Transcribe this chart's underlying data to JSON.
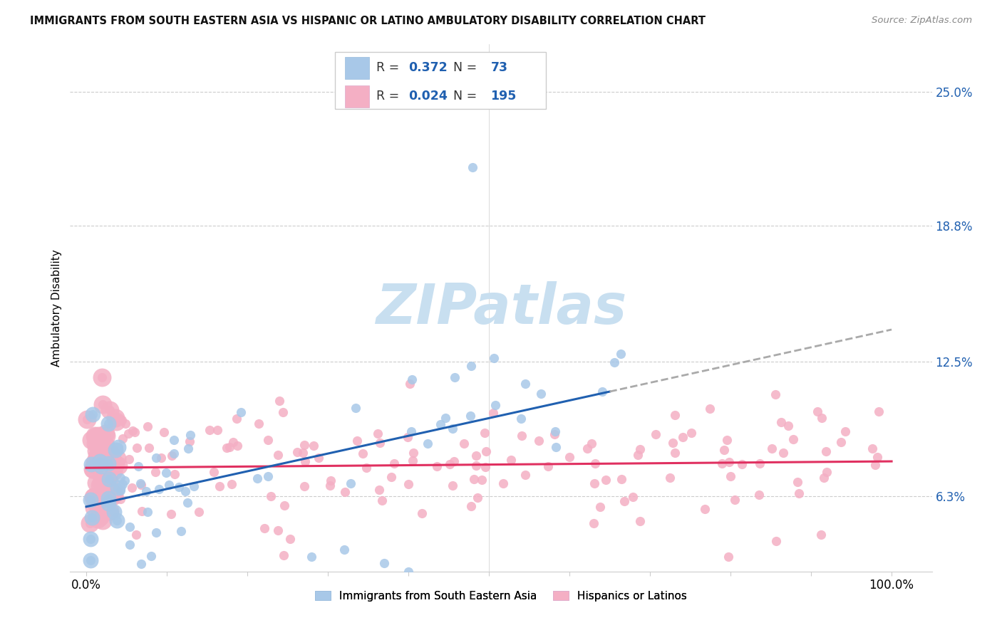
{
  "title": "IMMIGRANTS FROM SOUTH EASTERN ASIA VS HISPANIC OR LATINO AMBULATORY DISABILITY CORRELATION CHART",
  "source": "Source: ZipAtlas.com",
  "ylabel": "Ambulatory Disability",
  "ytick_labels": [
    "6.3%",
    "12.5%",
    "18.8%",
    "25.0%"
  ],
  "ytick_values": [
    0.063,
    0.125,
    0.188,
    0.25
  ],
  "xtick_values": [
    0.0,
    0.1,
    0.2,
    0.3,
    0.4,
    0.5,
    0.6,
    0.7,
    0.8,
    0.9,
    1.0
  ],
  "xlim": [
    -0.02,
    1.05
  ],
  "ylim": [
    0.028,
    0.272
  ],
  "blue_R": 0.372,
  "blue_N": 73,
  "pink_R": 0.024,
  "pink_N": 195,
  "blue_color": "#a8c8e8",
  "pink_color": "#f4afc4",
  "blue_line_color": "#2060b0",
  "pink_line_color": "#e03060",
  "blue_dash_color": "#aaaaaa",
  "watermark_color": "#c8dff0",
  "legend_label_blue": "Immigrants from South Eastern Asia",
  "legend_label_pink": "Hispanics or Latinos",
  "ytick_color": "#2060b0",
  "title_color": "#111111",
  "source_color": "#888888"
}
